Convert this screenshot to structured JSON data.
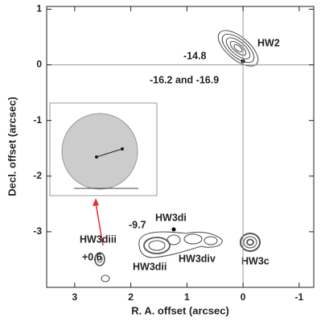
{
  "chart_data": {
    "type": "contour",
    "x_label": "R. A. offset (arcsec)",
    "y_label": "Decl. offset (arcsec)",
    "xlim": [
      3.5,
      -1.26
    ],
    "ylim": [
      -4,
      1.05
    ],
    "xticks": [
      3,
      2,
      1,
      0,
      -1
    ],
    "yticks": [
      1,
      0,
      -1,
      -2,
      -3
    ],
    "reference_lines": {
      "x": 0,
      "y": 0
    },
    "annotations": [
      "HW2",
      "-14.8",
      "-16.2 and -16.9",
      "HW3di",
      "-9.7",
      "HW3diii",
      "+0.6",
      "HW3dii",
      "HW3div",
      "HW3c"
    ]
  }
}
